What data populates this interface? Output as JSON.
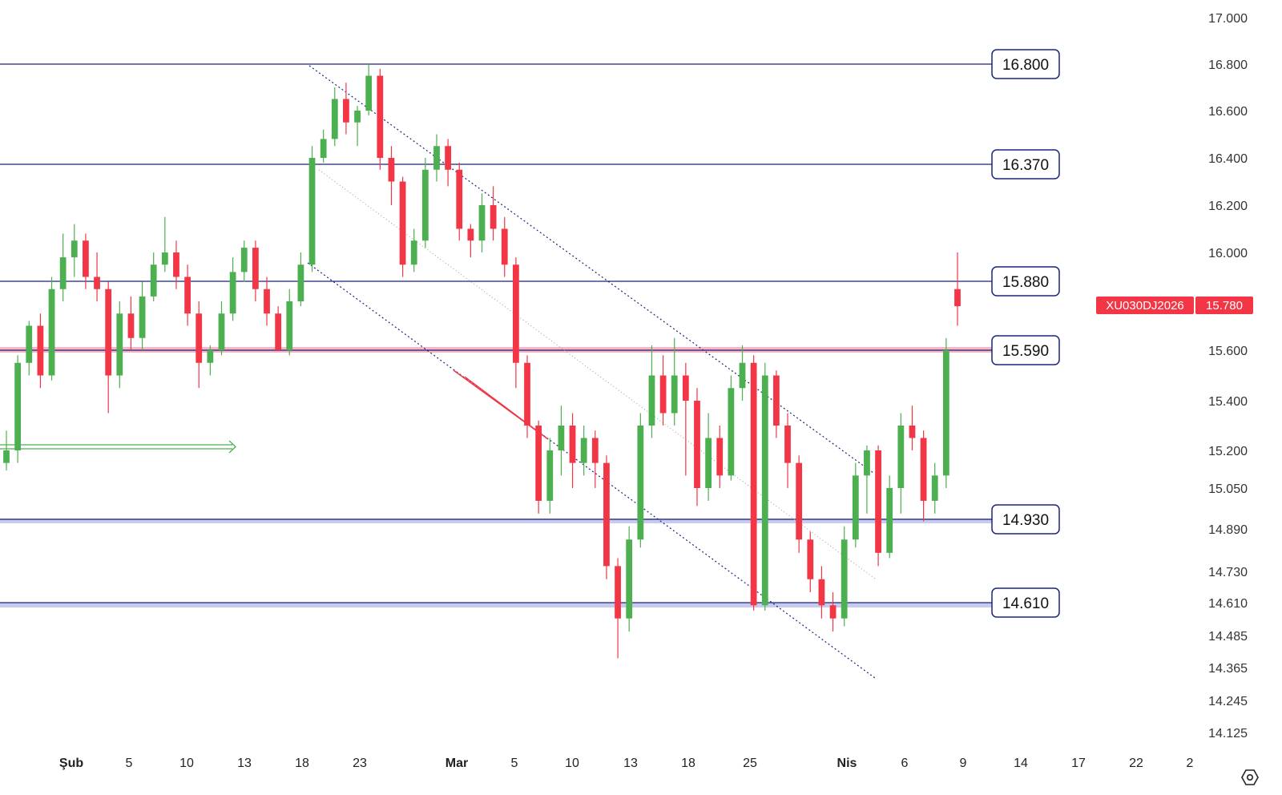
{
  "chart_data": {
    "type": "candlestick",
    "symbol": "XU030DJ2026",
    "last_price": "15.780",
    "colors": {
      "up": "#4caf50",
      "down": "#f23645",
      "level_line": "#1a237e",
      "price_tag": "#f23645",
      "arrow": "#4caf50"
    },
    "y_ticks": [
      "17.000",
      "16.800",
      "16.600",
      "16.400",
      "16.200",
      "16.000",
      "15.600",
      "15.400",
      "15.200",
      "15.050",
      "14.890",
      "14.730",
      "14.610",
      "14.485",
      "14.365",
      "14.245",
      "14.125"
    ],
    "x_ticks": [
      {
        "label": "Şub",
        "bold": true,
        "day": 1
      },
      {
        "label": "5",
        "day": 5
      },
      {
        "label": "10",
        "day": 10
      },
      {
        "label": "13",
        "day": 13
      },
      {
        "label": "18",
        "day": 18
      },
      {
        "label": "23",
        "day": 23
      },
      {
        "label": "Mar",
        "bold": true,
        "day": 29
      },
      {
        "label": "5",
        "day": 33
      },
      {
        "label": "10",
        "day": 38
      },
      {
        "label": "13",
        "day": 41
      },
      {
        "label": "18",
        "day": 46
      },
      {
        "label": "25",
        "day": 53
      },
      {
        "label": "Nis",
        "bold": true,
        "day": 60
      },
      {
        "label": "6",
        "day": 65
      },
      {
        "label": "9",
        "day": 68
      },
      {
        "label": "14",
        "day": 73
      },
      {
        "label": "17",
        "day": 76
      },
      {
        "label": "22",
        "day": 81
      },
      {
        "label": "2",
        "day": 91
      }
    ],
    "levels": [
      {
        "label": "16.800",
        "value": 16.8
      },
      {
        "label": "16.370",
        "value": 16.37
      },
      {
        "label": "15.880",
        "value": 15.88
      },
      {
        "label": "15.590",
        "value": 15.59
      },
      {
        "label": "14.930",
        "value": 14.93
      },
      {
        "label": "14.610",
        "value": 14.61
      }
    ],
    "candles": [
      [
        15.15,
        15.2,
        15.28,
        15.12
      ],
      [
        15.2,
        15.55,
        15.58,
        15.15
      ],
      [
        15.55,
        15.7,
        15.72,
        15.5
      ],
      [
        15.7,
        15.5,
        15.75,
        15.45
      ],
      [
        15.5,
        15.85,
        15.9,
        15.48
      ],
      [
        15.85,
        15.98,
        16.08,
        15.8
      ],
      [
        15.98,
        16.05,
        16.12,
        15.9
      ],
      [
        16.05,
        15.9,
        16.08,
        15.85
      ],
      [
        15.9,
        15.85,
        16.0,
        15.8
      ],
      [
        15.85,
        15.5,
        15.88,
        15.35
      ],
      [
        15.5,
        15.75,
        15.8,
        15.45
      ],
      [
        15.75,
        15.65,
        15.82,
        15.6
      ],
      [
        15.65,
        15.82,
        15.88,
        15.6
      ],
      [
        15.82,
        15.95,
        16.0,
        15.8
      ],
      [
        15.95,
        16.0,
        16.15,
        15.92
      ],
      [
        16.0,
        15.9,
        16.05,
        15.85
      ],
      [
        15.9,
        15.75,
        15.95,
        15.7
      ],
      [
        15.75,
        15.55,
        15.8,
        15.45
      ],
      [
        15.55,
        15.6,
        15.62,
        15.5
      ],
      [
        15.6,
        15.75,
        15.8,
        15.58
      ],
      [
        15.75,
        15.92,
        15.98,
        15.72
      ],
      [
        15.92,
        16.02,
        16.05,
        15.88
      ],
      [
        16.02,
        15.85,
        16.05,
        15.8
      ],
      [
        15.85,
        15.75,
        15.9,
        15.7
      ],
      [
        15.75,
        15.6,
        15.78,
        15.6
      ],
      [
        15.6,
        15.8,
        15.85,
        15.58
      ],
      [
        15.8,
        15.95,
        16.0,
        15.78
      ],
      [
        15.95,
        16.4,
        16.45,
        15.92
      ],
      [
        16.4,
        16.48,
        16.52,
        16.38
      ],
      [
        16.48,
        16.65,
        16.7,
        16.45
      ],
      [
        16.65,
        16.55,
        16.72,
        16.5
      ],
      [
        16.55,
        16.6,
        16.62,
        16.45
      ],
      [
        16.6,
        16.75,
        16.8,
        16.58
      ],
      [
        16.75,
        16.4,
        16.78,
        16.35
      ],
      [
        16.4,
        16.3,
        16.45,
        16.2
      ],
      [
        16.3,
        15.95,
        16.32,
        15.9
      ],
      [
        15.95,
        16.05,
        16.1,
        15.92
      ],
      [
        16.05,
        16.35,
        16.4,
        16.02
      ],
      [
        16.35,
        16.45,
        16.5,
        16.3
      ],
      [
        16.45,
        16.35,
        16.48,
        16.28
      ],
      [
        16.35,
        16.1,
        16.38,
        16.05
      ],
      [
        16.1,
        16.05,
        16.12,
        15.98
      ],
      [
        16.05,
        16.2,
        16.25,
        16.0
      ],
      [
        16.2,
        16.1,
        16.28,
        16.05
      ],
      [
        16.1,
        15.95,
        16.15,
        15.9
      ],
      [
        15.95,
        15.55,
        15.98,
        15.45
      ],
      [
        15.55,
        15.3,
        15.58,
        15.25
      ],
      [
        15.3,
        15.0,
        15.32,
        14.95
      ],
      [
        15.0,
        15.2,
        15.25,
        14.95
      ],
      [
        15.2,
        15.3,
        15.38,
        15.1
      ],
      [
        15.3,
        15.15,
        15.35,
        15.05
      ],
      [
        15.15,
        15.25,
        15.3,
        15.1
      ],
      [
        15.25,
        15.15,
        15.28,
        15.05
      ],
      [
        15.15,
        14.75,
        15.18,
        14.7
      ],
      [
        14.75,
        14.55,
        14.78,
        14.4
      ],
      [
        14.55,
        14.85,
        14.9,
        14.5
      ],
      [
        14.85,
        15.3,
        15.35,
        14.82
      ],
      [
        15.3,
        15.5,
        15.62,
        15.25
      ],
      [
        15.5,
        15.35,
        15.58,
        15.3
      ],
      [
        15.35,
        15.5,
        15.65,
        15.3
      ],
      [
        15.5,
        15.4,
        15.55,
        15.1
      ],
      [
        15.4,
        15.05,
        15.45,
        14.98
      ],
      [
        15.05,
        15.25,
        15.35,
        15.0
      ],
      [
        15.25,
        15.1,
        15.3,
        15.05
      ],
      [
        15.1,
        15.45,
        15.5,
        15.08
      ],
      [
        15.45,
        15.55,
        15.62,
        15.4
      ],
      [
        15.55,
        14.6,
        15.58,
        14.58
      ],
      [
        14.6,
        15.5,
        15.55,
        14.58
      ],
      [
        15.5,
        15.3,
        15.52,
        15.25
      ],
      [
        15.3,
        15.15,
        15.35,
        15.05
      ],
      [
        15.15,
        14.85,
        15.18,
        14.8
      ],
      [
        14.85,
        14.7,
        14.88,
        14.65
      ],
      [
        14.7,
        14.6,
        14.75,
        14.55
      ],
      [
        14.6,
        14.55,
        14.65,
        14.5
      ],
      [
        14.55,
        14.85,
        14.9,
        14.52
      ],
      [
        14.85,
        15.1,
        15.15,
        14.82
      ],
      [
        15.1,
        15.2,
        15.22,
        14.95
      ],
      [
        15.2,
        14.8,
        15.22,
        14.75
      ],
      [
        14.8,
        15.05,
        15.1,
        14.78
      ],
      [
        15.05,
        15.3,
        15.35,
        14.95
      ],
      [
        15.3,
        15.25,
        15.38,
        15.2
      ],
      [
        15.25,
        15.0,
        15.28,
        14.92
      ],
      [
        15.0,
        15.1,
        15.15,
        14.95
      ],
      [
        15.1,
        15.6,
        15.65,
        15.05
      ],
      [
        15.85,
        15.78,
        16.0,
        15.7
      ]
    ]
  },
  "ui": {
    "settings_icon": "settings-hexagon-icon"
  }
}
